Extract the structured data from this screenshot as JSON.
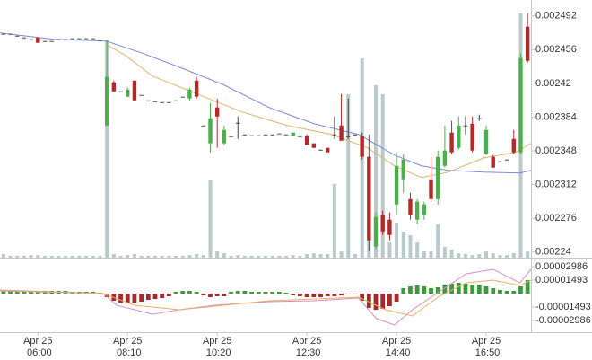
{
  "chart_data": {
    "type": "candlestick",
    "xlim": [
      -55,
      715
    ],
    "xticks": [
      {
        "value": 0,
        "label": "Apr 25\n06:00"
      },
      {
        "value": 130,
        "label": "Apr 25\n08:10"
      },
      {
        "value": 260,
        "label": "Apr 25\n10:20"
      },
      {
        "value": 390,
        "label": "Apr 25\n12:30"
      },
      {
        "value": 520,
        "label": "Apr 25\n14:40"
      },
      {
        "value": 650,
        "label": "Apr 25\n16:50"
      }
    ],
    "ylim": [
      0.002234,
      0.002509
    ],
    "yticks": [
      0.002492,
      0.002456,
      0.00242,
      0.002384,
      0.002348,
      0.002312,
      0.002276,
      0.00224
    ],
    "up_color": "#4cae4c",
    "down_color": "#b22a2a",
    "flat_color": "#444444",
    "x": [
      -50,
      -40,
      -30,
      -20,
      -10,
      0,
      10,
      20,
      30,
      40,
      50,
      60,
      70,
      80,
      90,
      100,
      110,
      120,
      130,
      140,
      150,
      160,
      170,
      180,
      190,
      200,
      210,
      220,
      230,
      240,
      250,
      260,
      270,
      280,
      290,
      300,
      310,
      320,
      330,
      340,
      350,
      360,
      370,
      380,
      390,
      400,
      410,
      420,
      430,
      440,
      450,
      460,
      470,
      480,
      490,
      500,
      510,
      520,
      530,
      540,
      550,
      560,
      570,
      580,
      590,
      600,
      610,
      620,
      630,
      640,
      650,
      660,
      670,
      680,
      690,
      700,
      710
    ],
    "open": [
      0.0024729,
      0.0024729,
      0.0024709,
      0.002469,
      0.0024671,
      0.002469,
      0.0024652,
      0.0024652,
      0.0024671,
      0.0024671,
      0.0024681,
      0.0024681,
      0.0024681,
      0.0024681,
      0.0024662,
      0.0023751,
      0.0024211,
      0.0024115,
      0.0024058,
      0.002423,
      0.0024077,
      0.0024019,
      0.002401,
      0.0024,
      0.0024,
      0.0024019,
      0.0024058,
      0.0024039,
      0.002423,
      0.0023751,
      0.002356,
      0.0023943,
      0.002356,
      0.0023636,
      0.002378,
      0.0023655,
      0.0023646,
      0.0023646,
      0.0023655,
      0.0023655,
      0.0023665,
      0.0023655,
      0.0023636,
      0.0023636,
      0.0023636,
      0.002356,
      0.0023492,
      0.0023512,
      0.0023655,
      0.0023751,
      0.0023636,
      0.0023655,
      0.0023636,
      0.0023416,
      0.0022458,
      0.0022793,
      0.0022745,
      0.0022908,
      0.0023176,
      0.0022965,
      0.0022745,
      0.0022793,
      0.0023176,
      0.0022965,
      0.002332,
      0.0023675,
      0.0023512,
      0.0023751,
      0.002377,
      0.0023828,
      0.0023445,
      0.0023416,
      0.0023368,
      0.0023387,
      0.0023607,
      0.0023464,
      0.0024805
    ],
    "high": [
      0.0024729,
      0.0024729,
      0.0024709,
      0.002469,
      0.0024671,
      0.002469,
      0.0024652,
      0.0024652,
      0.0024671,
      0.0024671,
      0.0024681,
      0.0024681,
      0.0024681,
      0.0024681,
      0.0024662,
      0.0024662,
      0.002423,
      0.0024115,
      0.0024154,
      0.002423,
      0.0024077,
      0.0024019,
      0.002401,
      0.0024,
      0.0024,
      0.0024019,
      0.0024058,
      0.0024154,
      0.0024269,
      0.0023751,
      0.0023991,
      0.0024039,
      0.0023751,
      0.0023636,
      0.0023847,
      0.0023655,
      0.0023646,
      0.0023646,
      0.0023655,
      0.0023655,
      0.0023665,
      0.0023655,
      0.0023675,
      0.0023636,
      0.0023655,
      0.002356,
      0.0023492,
      0.0023512,
      0.0023847,
      0.0024087,
      0.0024039,
      0.0023655,
      0.0023675,
      0.0023655,
      0.0022822,
      0.0022841,
      0.0022822,
      0.0023464,
      0.0023445,
      0.0023032,
      0.0022965,
      0.0022937,
      0.0023416,
      0.0023483,
      0.0023751,
      0.0023799,
      0.0023847,
      0.0023847,
      0.0023847,
      0.0023866,
      0.0023751,
      0.0023435,
      0.0023368,
      0.0023387,
      0.0023703,
      0.0024518,
      0.0024949
    ],
    "low": [
      0.0024729,
      0.0024729,
      0.0024709,
      0.002469,
      0.0024671,
      0.0024633,
      0.0024652,
      0.0024652,
      0.0024671,
      0.0024671,
      0.0024681,
      0.0024681,
      0.0024681,
      0.0024681,
      0.0024662,
      0.0023751,
      0.0024115,
      0.0024115,
      0.0024058,
      0.0024019,
      0.0024077,
      0.0024019,
      0.002401,
      0.0024,
      0.0024,
      0.0024019,
      0.0024058,
      0.0024019,
      0.0024039,
      0.0023751,
      0.0023464,
      0.0023512,
      0.002354,
      0.0023636,
      0.0023607,
      0.0023655,
      0.0023646,
      0.0023646,
      0.0023655,
      0.0023655,
      0.0023665,
      0.0023655,
      0.0023636,
      0.0023636,
      0.002354,
      0.0023512,
      0.0023492,
      0.0023464,
      0.0023607,
      0.0023588,
      0.0023607,
      0.0023655,
      0.0023387,
      0.002241,
      0.0022429,
      0.0022582,
      0.0022525,
      0.0022793,
      0.0023032,
      0.0022745,
      0.0022697,
      0.0022745,
      0.0022937,
      0.0022908,
      0.0023301,
      0.0023445,
      0.0023492,
      0.0023655,
      0.0023464,
      0.0023799,
      0.0023435,
      0.0023301,
      0.0023368,
      0.0023387,
      0.0023445,
      0.0023445,
      0.0024422
    ],
    "close": [
      0.0024729,
      0.0024729,
      0.0024709,
      0.002469,
      0.0024671,
      0.0024633,
      0.0024652,
      0.0024652,
      0.0024671,
      0.0024671,
      0.0024681,
      0.0024681,
      0.0024681,
      0.0024681,
      0.0024662,
      0.0024269,
      0.0024115,
      0.0024115,
      0.0024134,
      0.0024019,
      0.0024077,
      0.0024019,
      0.002401,
      0.0024,
      0.0024,
      0.0024019,
      0.0024058,
      0.0024134,
      0.0024058,
      0.0023751,
      0.0023828,
      0.0023847,
      0.0023703,
      0.0023636,
      0.002378,
      0.0023655,
      0.0023646,
      0.0023646,
      0.0023655,
      0.0023655,
      0.0023665,
      0.0023655,
      0.0023675,
      0.0023636,
      0.002354,
      0.0023512,
      0.0023492,
      0.0023464,
      0.0023655,
      0.0023588,
      0.0023636,
      0.0023655,
      0.0023416,
      0.0022525,
      0.0022774,
      0.002262,
      0.0022582,
      0.002332,
      0.0023387,
      0.0022793,
      0.0022937,
      0.0022908,
      0.0022965,
      0.0023416,
      0.0023483,
      0.0023464,
      0.0023751,
      0.0023751,
      0.0023483,
      0.0023828,
      0.0023703,
      0.0023301,
      0.0023368,
      0.0023387,
      0.0023464,
      0.002447,
      0.0024441
    ],
    "volume": {
      "color": "#b9caca",
      "ylim": [
        0,
        100
      ],
      "values": [
        1.4,
        0.7,
        0.7,
        0.7,
        1,
        1,
        0.7,
        0.7,
        0.7,
        0.7,
        0.7,
        0.7,
        0.7,
        0.7,
        0.7,
        84.3,
        1.4,
        0.7,
        1,
        1.4,
        0.7,
        0.7,
        0.7,
        0.7,
        0.7,
        0.7,
        0.7,
        1,
        1.4,
        1,
        30.3,
        2.4,
        1.7,
        0.7,
        1,
        0.7,
        0.7,
        0.7,
        0.7,
        0.7,
        0.7,
        0.7,
        1,
        0.7,
        1.4,
        1.7,
        1.4,
        1.4,
        28.6,
        2.4,
        63.4,
        1.4,
        77.4,
        12.9,
        66.9,
        63.4,
        5.9,
        13.6,
        10.1,
        8.7,
        5.9,
        2.4,
        2.4,
        12.9,
        4.2,
        3.1,
        1.7,
        1.4,
        1,
        1.4,
        2.4,
        1.7,
        1,
        1,
        1.7,
        94.8,
        2.4
      ]
    },
    "moving_averages": [
      {
        "color": "#7b8ad6",
        "x": [
          -55,
          23,
          99,
          153,
          205,
          270,
          335,
          400,
          465,
          517,
          556,
          595,
          647,
          699,
          715
        ],
        "values": [
          0.0024738,
          0.0024671,
          0.0024652,
          0.0024518,
          0.0024374,
          0.0024182,
          0.0023943,
          0.002377,
          0.0023655,
          0.0023435,
          0.002332,
          0.0023272,
          0.0023253,
          0.0023243,
          0.0023272
        ]
      },
      {
        "color": "#e2b26e",
        "x": [
          99,
          127,
          166,
          231,
          296,
          361,
          426,
          478,
          517,
          556,
          595,
          647,
          693,
          715
        ],
        "values": [
          0.0024614,
          0.0024499,
          0.0024278,
          0.0024087,
          0.0023895,
          0.0023751,
          0.0023655,
          0.0023512,
          0.002332,
          0.0023195,
          0.0023253,
          0.0023406,
          0.0023464,
          0.002356
        ]
      }
    ],
    "macd": {
      "ylim": [
        -4.28e-05,
        3.88e-05
      ],
      "yticks": [
        2.986e-05,
        1.493e-05,
        -1.493e-05,
        -2.986e-05
      ],
      "histogram": {
        "up_color": "#3c9a3c",
        "down_color": "#a32b2b",
        "values": [
          3e-06,
          3e-06,
          3e-06,
          3e-06,
          3e-06,
          3e-06,
          3e-06,
          3e-06,
          3e-06,
          3e-06,
          2e-06,
          2e-06,
          2e-06,
          2e-06,
          1e-06,
          -4e-06,
          -8e-06,
          -1e-05,
          -1.1e-05,
          -1e-05,
          -9e-06,
          -7e-06,
          -6e-06,
          -5e-06,
          -3e-06,
          2e-06,
          3e-06,
          3e-06,
          2e-06,
          -2e-06,
          -4e-06,
          -3e-06,
          -3e-06,
          2e-06,
          3e-06,
          3e-06,
          2e-06,
          2e-06,
          2e-06,
          2e-06,
          2e-06,
          1e-06,
          -2e-06,
          -3e-06,
          -4e-06,
          -4e-06,
          -4e-06,
          -3e-06,
          -3e-06,
          -2e-06,
          -1e-06,
          -1e-06,
          -8e-06,
          -1.6e-05,
          -1.8e-05,
          -1.7e-05,
          -1.4e-05,
          -9e-06,
          6e-06,
          8e-06,
          9e-06,
          8e-06,
          6e-06,
          7e-06,
          1e-05,
          1.1e-05,
          1.2e-05,
          1.1e-05,
          1e-05,
          1e-05,
          8e-06,
          6e-06,
          4e-06,
          3e-06,
          3e-06,
          8e-06,
          1.5e-05
        ]
      },
      "lines": [
        {
          "color": "#d98ac4",
          "x": [
            -55,
            95,
            114,
            166,
            205,
            257,
            335,
            400,
            465,
            491,
            517,
            543,
            582,
            621,
            660,
            699,
            715
          ],
          "values": [
            4e-06,
            0,
            -1.29e-05,
            -2.29e-05,
            -1.79e-05,
            -1.29e-05,
            -9e-06,
            -8e-06,
            -5e-06,
            -2.79e-05,
            -3.48e-05,
            -1.79e-05,
            2e-06,
            2.19e-05,
            2.69e-05,
            1.19e-05,
            2.69e-05
          ]
        },
        {
          "color": "#e8b060",
          "x": [
            -55,
            95,
            140,
            205,
            335,
            465,
            504,
            543,
            582,
            621,
            660,
            699,
            715
          ],
          "values": [
            3e-06,
            0,
            -1.29e-05,
            -1.79e-05,
            -8e-06,
            -4e-06,
            -1.79e-05,
            -2.49e-05,
            -3e-06,
            1.19e-05,
            1.49e-05,
            9e-06,
            1.49e-05
          ]
        }
      ]
    }
  }
}
